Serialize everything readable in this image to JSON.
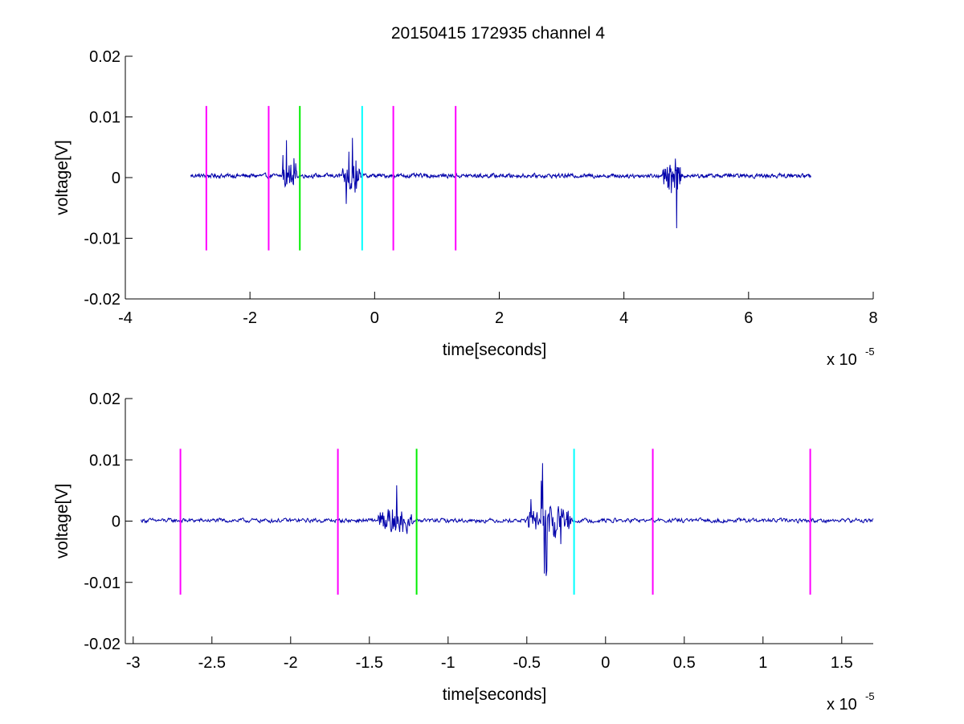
{
  "figure_title": "20150415 172935 channel 4",
  "chart_data": [
    {
      "type": "line",
      "title": "20150415 172935 channel 4",
      "xlabel": "time[seconds]",
      "ylabel": "voltage[V]",
      "x_multiplier": {
        "base": "x 10",
        "exponent": "-5"
      },
      "xlim": [
        -4,
        8
      ],
      "ylim": [
        -0.02,
        0.02
      ],
      "xticks": [
        -4,
        -2,
        0,
        2,
        4,
        6,
        8
      ],
      "xtick_labels": [
        "-4",
        "-2",
        "0",
        "2",
        "4",
        "6",
        "8"
      ],
      "yticks": [
        -0.02,
        -0.01,
        0,
        0.01,
        0.02
      ],
      "ytick_labels": [
        "-0.02",
        "-0.01",
        "0",
        "0.01",
        "0.02"
      ],
      "grid": false,
      "series": [
        {
          "color": "#0000aa",
          "x_range": [
            -2.95,
            7.0
          ],
          "baseline": 0.0003,
          "noise_amp": 0.0004,
          "bursts": [
            {
              "x": [
                -1.5,
                -1.25
              ],
              "amp": 0.007
            },
            {
              "x": [
                -0.52,
                -0.22
              ],
              "amp": 0.01
            },
            {
              "x": [
                4.62,
                4.95
              ],
              "amp": 0.01
            }
          ]
        }
      ],
      "markers": [
        {
          "x": -2.7,
          "color": "#ff00ff",
          "y": [
            -0.012,
            0.0118
          ]
        },
        {
          "x": -1.7,
          "color": "#ff00ff",
          "y": [
            -0.012,
            0.0118
          ]
        },
        {
          "x": -1.2,
          "color": "#00ee00",
          "y": [
            -0.012,
            0.0118
          ]
        },
        {
          "x": -0.2,
          "color": "#00ffff",
          "y": [
            -0.012,
            0.0118
          ]
        },
        {
          "x": 0.3,
          "color": "#ff00ff",
          "y": [
            -0.012,
            0.0118
          ]
        },
        {
          "x": 1.3,
          "color": "#ff00ff",
          "y": [
            -0.012,
            0.0118
          ]
        }
      ]
    },
    {
      "type": "line",
      "title": "",
      "xlabel": "time[seconds]",
      "ylabel": "voltage[V]",
      "x_multiplier": {
        "base": "x 10",
        "exponent": "-5"
      },
      "xlim": [
        -3.05,
        1.7
      ],
      "ylim": [
        -0.02,
        0.02
      ],
      "xticks": [
        -3,
        -2.5,
        -2,
        -1.5,
        -1,
        -0.5,
        0,
        0.5,
        1,
        1.5
      ],
      "xtick_labels": [
        "-3",
        "-2.5",
        "-2",
        "-1.5",
        "-1",
        "-0.5",
        "0",
        "0.5",
        "1",
        "1.5"
      ],
      "yticks": [
        -0.02,
        -0.01,
        0,
        0.01,
        0.02
      ],
      "ytick_labels": [
        "-0.02",
        "-0.01",
        "0",
        "0.01",
        "0.02"
      ],
      "grid": false,
      "series": [
        {
          "color": "#0000aa",
          "x_range": [
            -2.95,
            1.7
          ],
          "baseline": 0.0001,
          "noise_amp": 0.0004,
          "bursts": [
            {
              "x": [
                -1.45,
                -1.22
              ],
              "amp": 0.0072
            },
            {
              "x": [
                -0.5,
                -0.22
              ],
              "amp": 0.0105
            }
          ]
        }
      ],
      "markers": [
        {
          "x": -2.7,
          "color": "#ff00ff",
          "y": [
            -0.012,
            0.0118
          ]
        },
        {
          "x": -1.7,
          "color": "#ff00ff",
          "y": [
            -0.012,
            0.0118
          ]
        },
        {
          "x": -1.2,
          "color": "#00ee00",
          "y": [
            -0.012,
            0.0118
          ]
        },
        {
          "x": -0.2,
          "color": "#00ffff",
          "y": [
            -0.012,
            0.0118
          ]
        },
        {
          "x": 0.3,
          "color": "#ff00ff",
          "y": [
            -0.012,
            0.0118
          ]
        },
        {
          "x": 1.3,
          "color": "#ff00ff",
          "y": [
            -0.012,
            0.0118
          ]
        }
      ]
    }
  ]
}
